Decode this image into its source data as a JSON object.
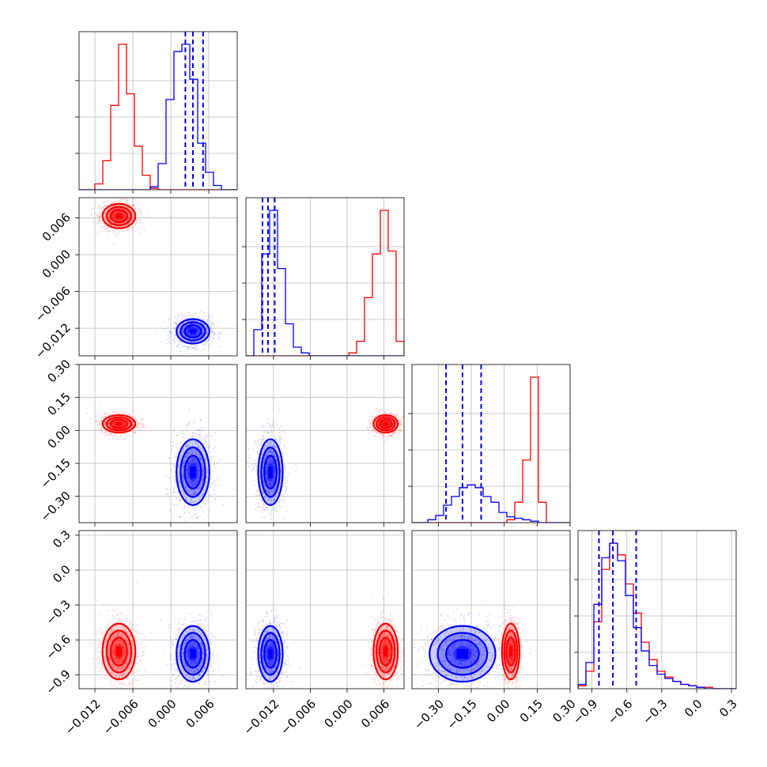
{
  "chart_data": {
    "type": "corner",
    "parameters": 4,
    "ranges": [
      [
        -0.0145,
        0.0105
      ],
      [
        -0.0165,
        0.0093
      ],
      [
        -0.42,
        0.3
      ],
      [
        -1.02,
        0.34
      ]
    ],
    "ticks": [
      [
        -0.012,
        -0.006,
        0.0,
        0.006
      ],
      [
        -0.012,
        -0.006,
        0.0,
        0.006
      ],
      [
        -0.3,
        -0.15,
        0.0,
        0.15,
        0.3
      ],
      [
        -0.9,
        -0.6,
        -0.3,
        0.0,
        0.3
      ]
    ],
    "tick_labels": [
      [
        "−0.012",
        "−0.006",
        "0.000",
        "0.006"
      ],
      [
        "−0.012",
        "−0.006",
        "0.000",
        "0.006"
      ],
      [
        "−0.30",
        "−0.15",
        "0.00",
        "0.15",
        "0.30"
      ],
      [
        "−0.9",
        "−0.6",
        "−0.3",
        "0.0",
        "0.3"
      ]
    ],
    "series": [
      {
        "color": "#ff0000",
        "mean": [
          -0.0082,
          0.0063,
          0.03,
          -0.7
        ],
        "std": [
          0.0013,
          0.001,
          0.02,
          0.12
        ],
        "hist": [
          [
            0,
            0,
            4,
            20,
            58,
            100,
            66,
            30,
            10,
            1,
            0,
            0,
            0,
            0,
            0,
            0,
            0,
            0,
            0,
            0
          ],
          [
            0,
            0,
            0,
            0,
            0,
            0,
            0,
            0,
            0,
            0,
            0,
            0,
            0,
            2,
            10,
            40,
            70,
            100,
            72,
            10
          ],
          [
            0,
            0,
            0,
            0,
            0,
            0,
            0,
            0,
            0,
            0,
            0,
            0,
            2,
            14,
            43,
            100,
            14,
            0,
            0,
            0
          ],
          [
            2,
            12,
            46,
            82,
            100,
            92,
            72,
            52,
            32,
            20,
            12,
            8,
            5,
            3,
            2,
            1,
            1,
            0,
            0,
            0
          ]
        ]
      },
      {
        "color": "#0000ff",
        "mean": [
          0.0035,
          -0.0125,
          -0.19,
          -0.72
        ],
        "std": [
          0.0013,
          0.001,
          0.075,
          0.12
        ],
        "hist": [
          [
            0,
            0,
            0,
            0,
            0,
            0,
            0,
            0,
            0,
            2,
            18,
            62,
            95,
            100,
            76,
            32,
            12,
            3,
            0,
            0
          ],
          [
            0,
            18,
            70,
            100,
            60,
            22,
            6,
            2,
            0,
            0,
            0,
            0,
            0,
            0,
            0,
            0,
            0,
            0,
            0,
            0
          ],
          [
            0,
            0,
            2,
            5,
            12,
            18,
            24,
            26,
            24,
            18,
            14,
            7,
            4,
            3,
            2,
            1,
            0,
            0,
            0,
            0
          ],
          [
            3,
            18,
            58,
            90,
            100,
            88,
            64,
            42,
            26,
            16,
            10,
            7,
            5,
            3,
            2,
            1,
            0,
            0,
            0,
            0
          ]
        ]
      }
    ],
    "quantiles_color": "#0000ff",
    "quantiles": [
      [
        0.0023,
        0.0035,
        0.0051
      ],
      [
        -0.0138,
        -0.0129,
        -0.0118
      ],
      [
        -0.265,
        -0.19,
        -0.105
      ],
      [
        -0.84,
        -0.72,
        -0.52
      ]
    ],
    "grid": true,
    "legend": "none"
  }
}
